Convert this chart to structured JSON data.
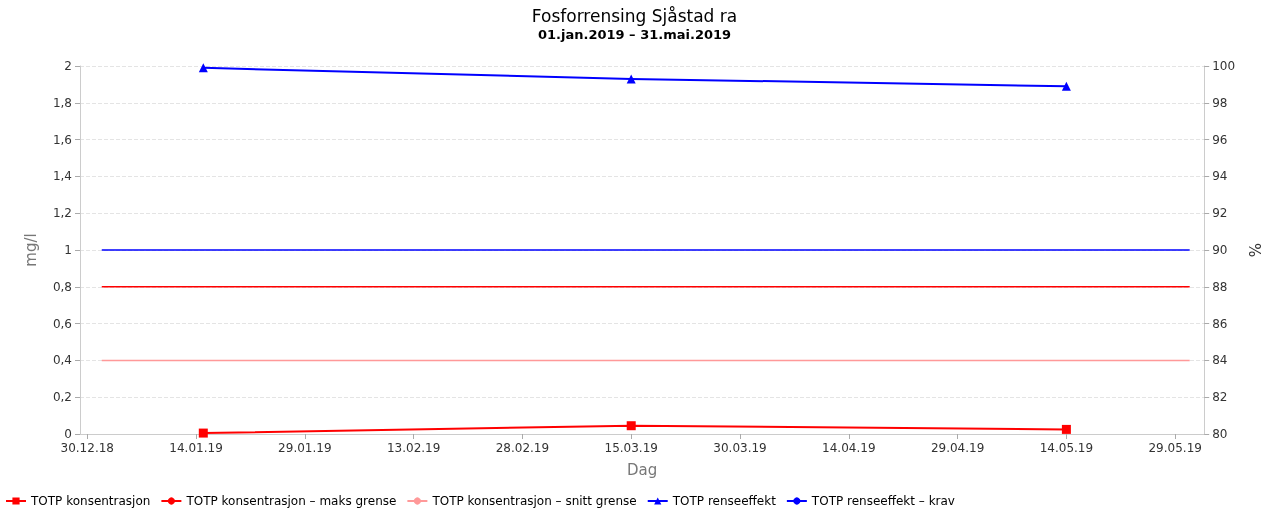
{
  "chart_data": {
    "type": "line",
    "title": "Fosforrensing Sjåstad ra",
    "subtitle": "01.jan.2019 – 31.mai.2019",
    "xlabel": "Dag",
    "ylabel": "mg/l",
    "y2label": "%",
    "series": [
      {
        "name": "TOTP konsentrasjon",
        "color": "#ff0000",
        "marker": "square",
        "x": [
          "2019-01-15",
          "2019-03-15",
          "2019-05-14"
        ],
        "values": [
          0.005,
          0.045,
          0.025
        ]
      },
      {
        "name": "TOTP konsentrasjon – maks grense",
        "color": "#ff0000",
        "marker": "none",
        "x": [
          "2019-01-01",
          "2019-05-31"
        ],
        "values": [
          0.8,
          0.8
        ]
      },
      {
        "name": "TOTP konsentrasjon – snitt grense",
        "color": "#ff9999",
        "marker": "none",
        "x": [
          "2019-01-01",
          "2019-05-31"
        ],
        "values": [
          0.4,
          0.4
        ]
      },
      {
        "name": "TOTP renseeffekt",
        "color": "#0000ff",
        "marker": "triangle",
        "axis": "y2",
        "x": [
          "2019-01-15",
          "2019-03-15",
          "2019-05-14"
        ],
        "values": [
          99.9,
          99.3,
          98.9
        ]
      },
      {
        "name": "TOTP renseeffekt – krav",
        "color": "#0000ff",
        "marker": "none",
        "axis": "y2",
        "x": [
          "2019-01-01",
          "2019-05-31"
        ],
        "values": [
          90,
          90
        ]
      }
    ],
    "xlim": [
      "2018-12-29",
      "2019-06-02"
    ],
    "xticks": [
      {
        "value": "2018-12-30",
        "label": "30.12.18"
      },
      {
        "value": "2019-01-14",
        "label": "14.01.19"
      },
      {
        "value": "2019-01-29",
        "label": "29.01.19"
      },
      {
        "value": "2019-02-13",
        "label": "13.02.19"
      },
      {
        "value": "2019-02-28",
        "label": "28.02.19"
      },
      {
        "value": "2019-03-15",
        "label": "15.03.19"
      },
      {
        "value": "2019-03-30",
        "label": "30.03.19"
      },
      {
        "value": "2019-04-14",
        "label": "14.04.19"
      },
      {
        "value": "2019-04-29",
        "label": "29.04.19"
      },
      {
        "value": "2019-05-14",
        "label": "14.05.19"
      },
      {
        "value": "2019-05-29",
        "label": "29.05.19"
      }
    ],
    "ylim": [
      0,
      2
    ],
    "yticks": [
      0,
      {
        "value": 0.2,
        "label": "0,2"
      },
      {
        "value": 0.4,
        "label": "0,4"
      },
      {
        "value": 0.6,
        "label": "0,6"
      },
      {
        "value": 0.8,
        "label": "0,8"
      },
      1,
      {
        "value": 1.2,
        "label": "1,2"
      },
      {
        "value": 1.4,
        "label": "1,4"
      },
      {
        "value": 1.6,
        "label": "1,6"
      },
      {
        "value": 1.8,
        "label": "1,8"
      },
      2
    ],
    "y2lim": [
      80,
      100
    ],
    "y2ticks": [
      80,
      82,
      84,
      86,
      88,
      90,
      92,
      94,
      96,
      98,
      100
    ],
    "grid": "y",
    "legend": "bottom",
    "line_style": "solid"
  }
}
